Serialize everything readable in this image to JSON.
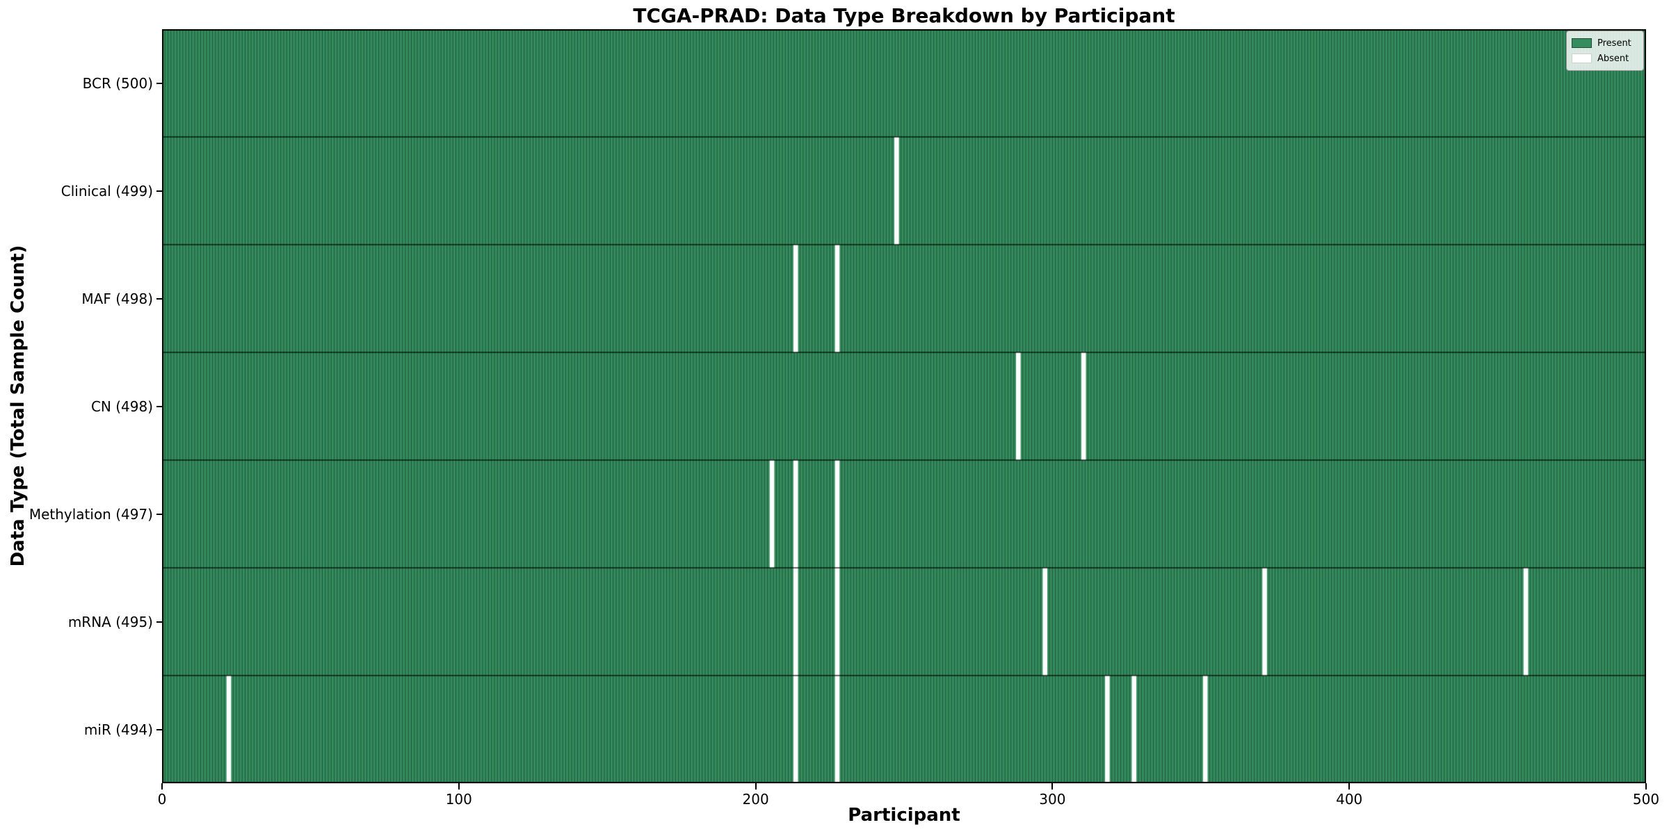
{
  "chart_data": {
    "type": "heatmap",
    "title": "TCGA-PRAD: Data Type Breakdown by Participant",
    "xlabel": "Participant",
    "ylabel": "Data Type (Total Sample Count)",
    "xlim": [
      0,
      500
    ],
    "x_ticks": [
      0,
      100,
      200,
      300,
      400,
      500
    ],
    "n_participants": 500,
    "grid": false,
    "legend": {
      "position": "upper right",
      "entries": [
        {
          "label": "Present",
          "color": "#348d5e"
        },
        {
          "label": "Absent",
          "color": "#ffffff"
        }
      ]
    },
    "colors": {
      "present_fill": "#348d5e",
      "absent_fill": "#ffffff",
      "bar_edge": "rgba(0,0,0,0.40)",
      "row_divider": "rgba(0,0,0,0.85)",
      "plot_border": "#000000"
    },
    "rows": [
      {
        "data_type": "BCR",
        "label": "BCR (500)",
        "total": 500,
        "absent_participants": []
      },
      {
        "data_type": "Clinical",
        "label": "Clinical (499)",
        "total": 499,
        "absent_participants": [
          247
        ]
      },
      {
        "data_type": "MAF",
        "label": "MAF (498)",
        "total": 498,
        "absent_participants": [
          213,
          227
        ]
      },
      {
        "data_type": "CN",
        "label": "CN (498)",
        "total": 498,
        "absent_participants": [
          288,
          310
        ]
      },
      {
        "data_type": "Methylation",
        "label": "Methylation (497)",
        "total": 497,
        "absent_participants": [
          205,
          213,
          227
        ]
      },
      {
        "data_type": "mRNA",
        "label": "mRNA (495)",
        "total": 495,
        "absent_participants": [
          213,
          227,
          297,
          371,
          459
        ]
      },
      {
        "data_type": "miR",
        "label": "miR (494)",
        "total": 494,
        "absent_participants": [
          22,
          213,
          227,
          318,
          327,
          351
        ]
      }
    ]
  }
}
